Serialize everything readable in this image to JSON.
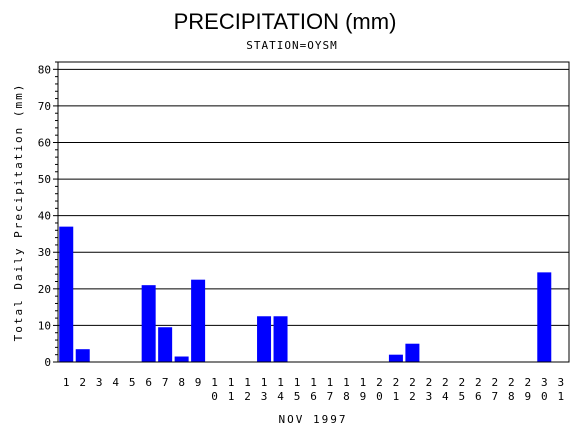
{
  "chart_data": {
    "type": "bar",
    "title": "PRECIPITATION (mm)",
    "subtitle": "STATION=OYSM",
    "xlabel": "NOV 1997",
    "ylabel": "Total Daily Precipitation (mm)",
    "ylim": [
      0,
      82
    ],
    "yticks": [
      0,
      10,
      20,
      30,
      40,
      50,
      60,
      70,
      80
    ],
    "grid": true,
    "bar_color": "#0000ff",
    "categories": [
      "1",
      "2",
      "3",
      "4",
      "5",
      "6",
      "7",
      "8",
      "9",
      "10",
      "11",
      "12",
      "13",
      "14",
      "15",
      "16",
      "17",
      "18",
      "19",
      "20",
      "21",
      "22",
      "23",
      "24",
      "25",
      "26",
      "27",
      "28",
      "29",
      "30",
      "31"
    ],
    "values": [
      37,
      3.5,
      0,
      0,
      0,
      21,
      9.5,
      1.5,
      22.5,
      0,
      0,
      0,
      12.5,
      12.5,
      0,
      0,
      0,
      0,
      0,
      0,
      2,
      5,
      0,
      0,
      0,
      0,
      0,
      0,
      0,
      24.5,
      0
    ]
  }
}
